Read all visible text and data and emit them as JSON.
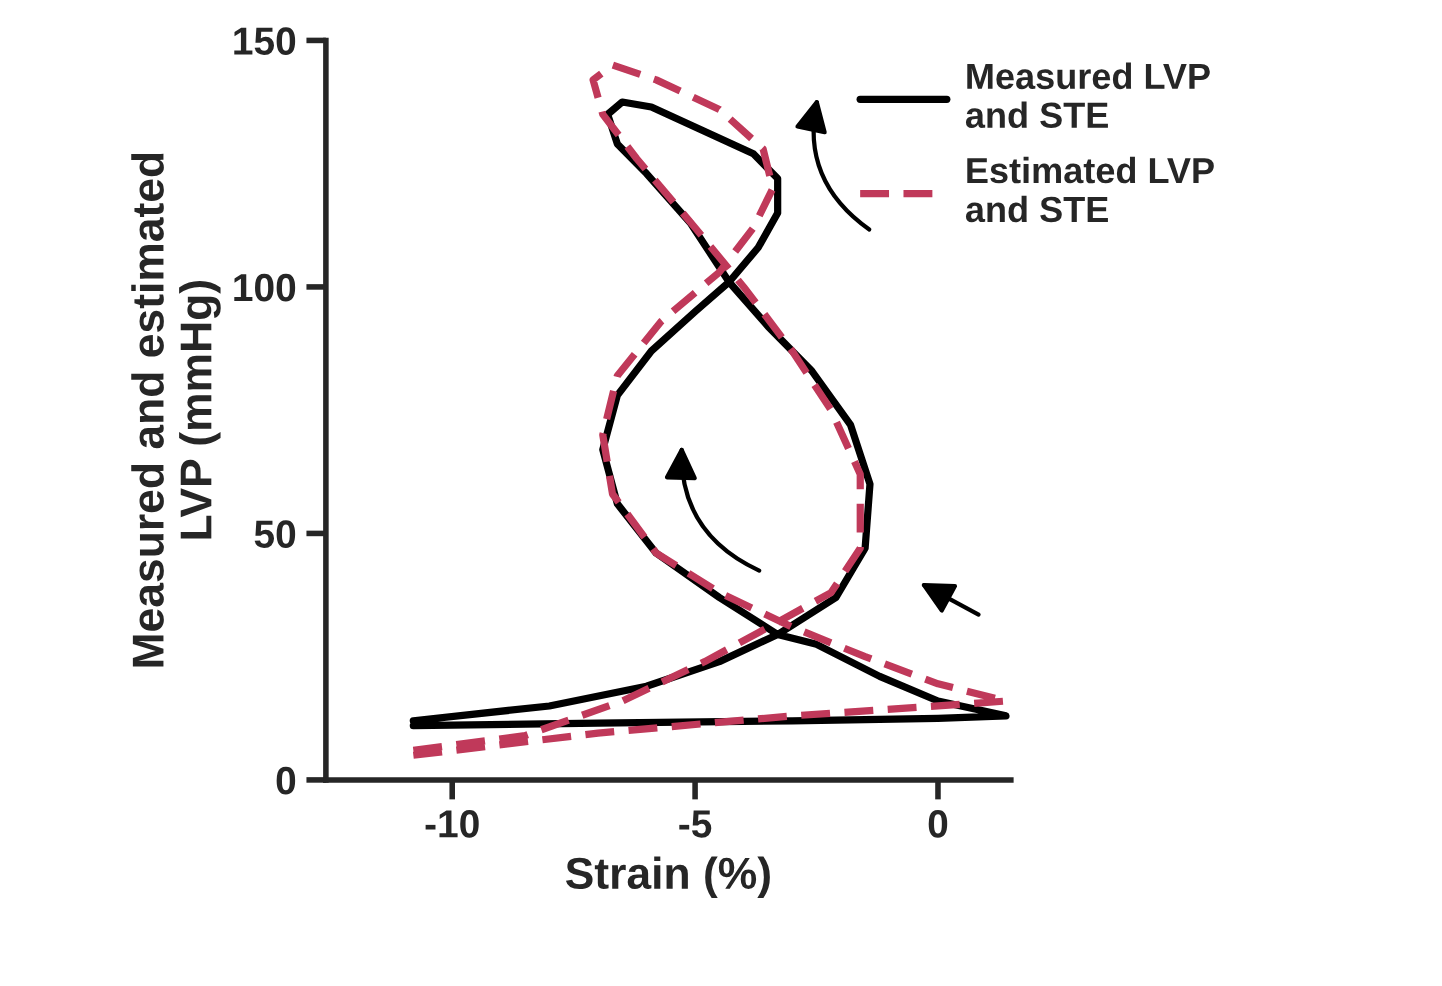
{
  "chart_data": {
    "type": "line",
    "xlabel": "Strain (%)",
    "ylabel": "Measured and estimated\nLVP (mmHg)",
    "xlim": [
      -12.6,
      1.5
    ],
    "ylim": [
      0,
      150
    ],
    "xticks": [
      -10,
      -5,
      0
    ],
    "yticks": [
      0,
      50,
      100,
      150
    ],
    "grid": false,
    "legend": "top right",
    "marker": "none",
    "series": [
      {
        "name": "Measured LVP\nand STE",
        "color": "#000000",
        "line_style": "solid",
        "x": [
          -10.8,
          -7,
          -3,
          0,
          1.4,
          0,
          -1.2,
          -2.5,
          -3.3,
          -4.5,
          -5.8,
          -6.6,
          -6.9,
          -6.6,
          -5.9,
          -5,
          -4.3,
          -3.7,
          -3.3,
          -3.3,
          -3.8,
          -4.9,
          -5.9,
          -6.5,
          -6.8,
          -6.6,
          -6,
          -5.1,
          -4.3,
          -3.5,
          -2.6,
          -1.8,
          -1.4,
          -1.5,
          -2.1,
          -3.3,
          -4.5,
          -6,
          -8,
          -10.8
        ],
        "values": [
          11,
          11.5,
          12,
          12.5,
          13,
          16,
          21,
          27.5,
          29.5,
          37,
          46,
          56,
          67,
          78,
          87,
          95,
          101,
          108,
          115,
          122,
          127,
          132,
          136.5,
          137.5,
          135,
          129,
          123,
          113,
          101,
          92,
          83,
          72,
          60,
          47,
          37,
          29.5,
          24,
          19,
          15,
          12
        ]
      },
      {
        "name": "Estimated LVP\nand STE",
        "color": "#c0395a",
        "line_style": "dashed",
        "x": [
          -10.8,
          -7,
          -3,
          0,
          1.4,
          0,
          -1.5,
          -3,
          -4.5,
          -5.8,
          -6.7,
          -6.9,
          -6.6,
          -5.7,
          -4.5,
          -3.8,
          -3.4,
          -3.6,
          -4.5,
          -5.8,
          -6.7,
          -7.1,
          -6.9,
          -6.2,
          -5,
          -4,
          -3,
          -2.2,
          -1.6,
          -1.6,
          -2.2,
          -3.3,
          -4.8,
          -6.5,
          -8.5,
          -10.8
        ],
        "values": [
          5,
          9.5,
          13,
          15,
          16,
          19.5,
          25,
          31,
          38,
          46,
          58,
          70,
          82,
          93,
          103,
          112,
          120,
          128,
          136,
          142,
          145,
          142,
          135,
          126,
          112,
          100,
          87,
          75,
          62,
          47,
          38,
          32,
          24,
          16,
          9,
          6
        ]
      }
    ]
  }
}
